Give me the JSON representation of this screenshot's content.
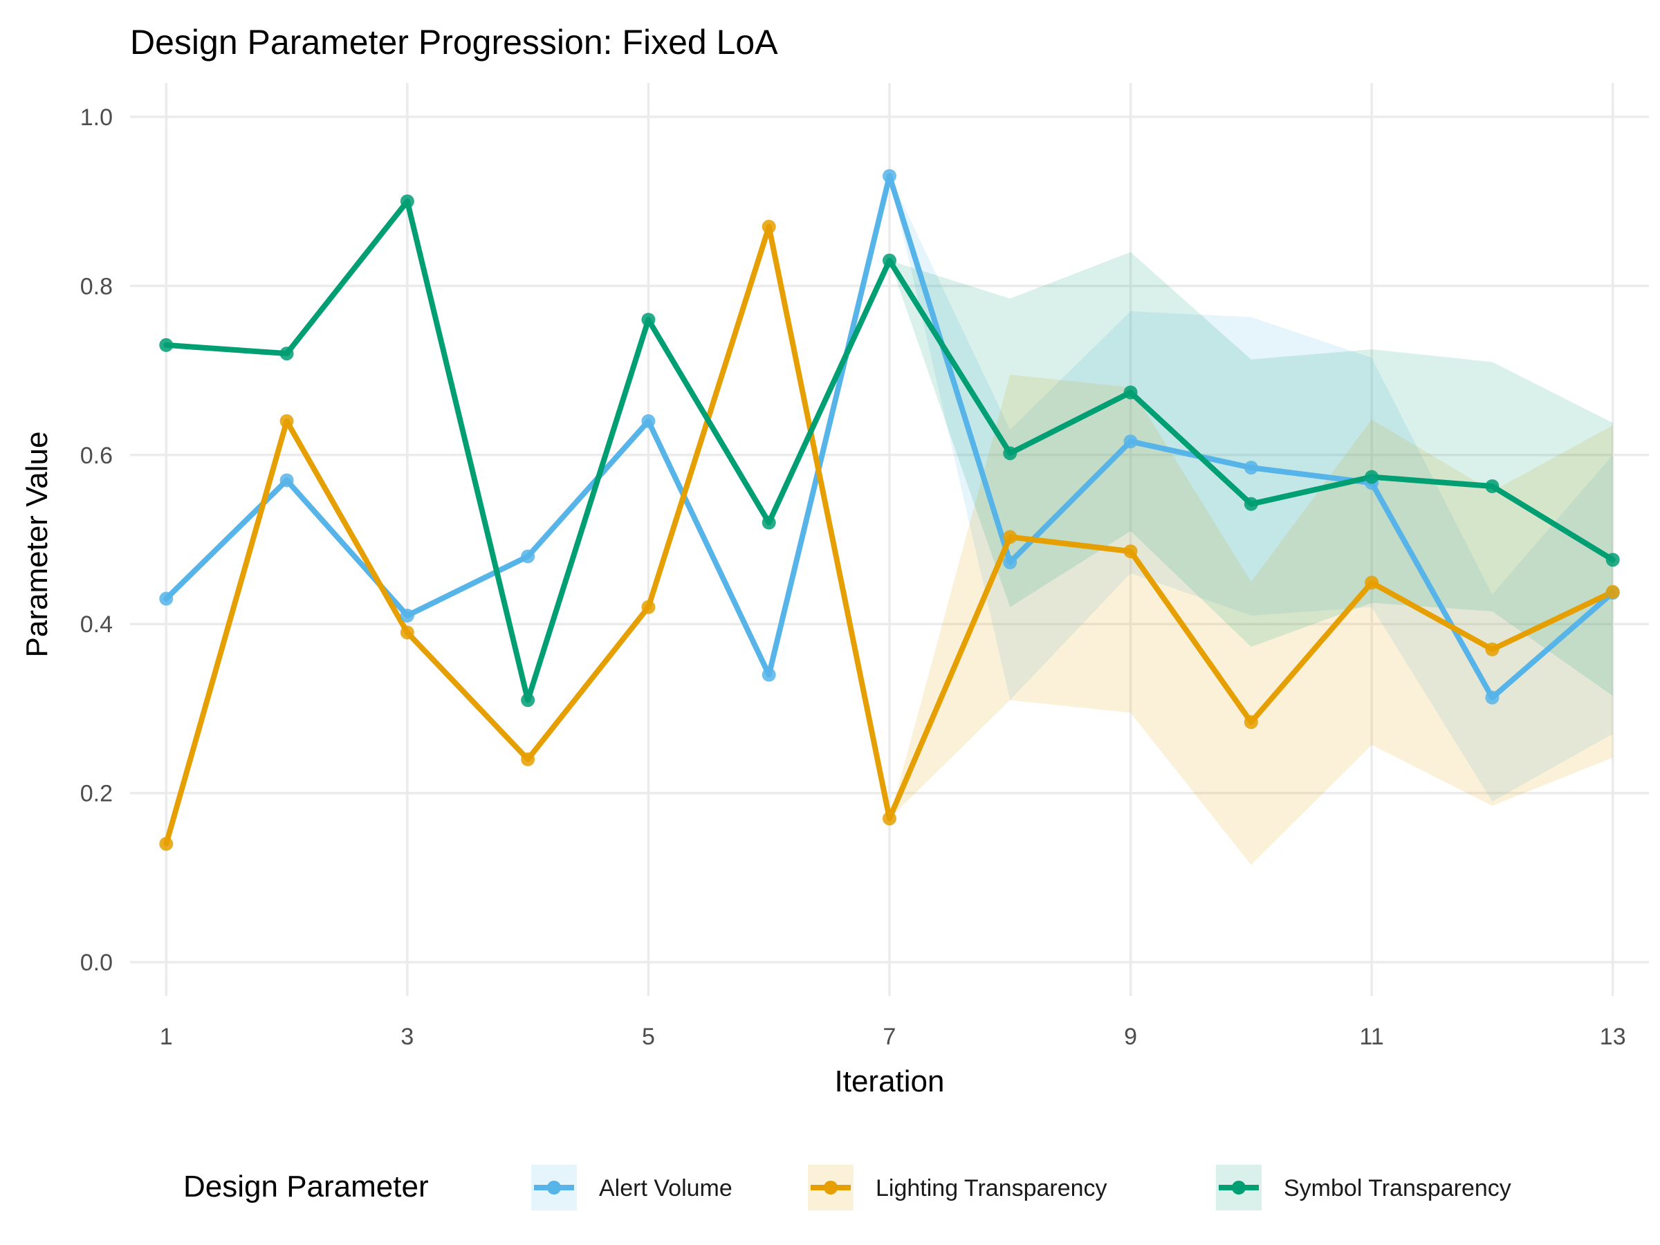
{
  "chart_data": {
    "type": "line",
    "title": "Design Parameter Progression: Fixed LoA",
    "xlabel": "Iteration",
    "ylabel": "Parameter Value",
    "xlim": [
      0.7,
      13.3
    ],
    "ylim": [
      -0.04,
      1.04
    ],
    "x_ticks": [
      1,
      3,
      5,
      7,
      9,
      11,
      13
    ],
    "y_ticks": [
      0.0,
      0.2,
      0.4,
      0.6,
      0.8,
      1.0
    ],
    "y_tick_labels": [
      "0.0",
      "0.2",
      "0.4",
      "0.6",
      "0.8",
      "1.0"
    ],
    "grid": true,
    "legend": {
      "title": "Design Parameter",
      "position": "bottom"
    },
    "x": [
      1,
      2,
      3,
      4,
      5,
      6,
      7,
      8,
      9,
      10,
      11,
      12,
      13
    ],
    "series": [
      {
        "name": "Alert Volume",
        "color": "#56B4E9",
        "values": [
          0.43,
          0.57,
          0.41,
          0.48,
          0.64,
          0.34,
          0.93,
          0.473,
          0.616,
          0.585,
          0.567,
          0.313,
          0.437
        ],
        "band": {
          "x": [
            7,
            8,
            9,
            10,
            11,
            12,
            13
          ],
          "lower": [
            0.93,
            0.31,
            0.46,
            0.41,
            0.42,
            0.19,
            0.27
          ],
          "upper": [
            0.93,
            0.63,
            0.77,
            0.763,
            0.715,
            0.435,
            0.6
          ]
        }
      },
      {
        "name": "Lighting Transparency",
        "color": "#E69F00",
        "values": [
          0.14,
          0.64,
          0.39,
          0.24,
          0.42,
          0.87,
          0.17,
          0.503,
          0.486,
          0.284,
          0.449,
          0.37,
          0.438
        ],
        "band": {
          "x": [
            7,
            8,
            9,
            10,
            11,
            12,
            13
          ],
          "lower": [
            0.17,
            0.31,
            0.295,
            0.115,
            0.257,
            0.185,
            0.242
          ],
          "upper": [
            0.17,
            0.695,
            0.68,
            0.45,
            0.642,
            0.557,
            0.635
          ]
        }
      },
      {
        "name": "Symbol Transparency",
        "color": "#009E73",
        "values": [
          0.73,
          0.72,
          0.9,
          0.31,
          0.76,
          0.52,
          0.83,
          0.602,
          0.674,
          0.542,
          0.574,
          0.563,
          0.476
        ],
        "band": {
          "x": [
            7,
            8,
            9,
            10,
            11,
            12,
            13
          ],
          "lower": [
            0.83,
            0.42,
            0.51,
            0.373,
            0.425,
            0.415,
            0.315
          ],
          "upper": [
            0.83,
            0.785,
            0.84,
            0.713,
            0.725,
            0.71,
            0.638
          ]
        }
      }
    ]
  }
}
